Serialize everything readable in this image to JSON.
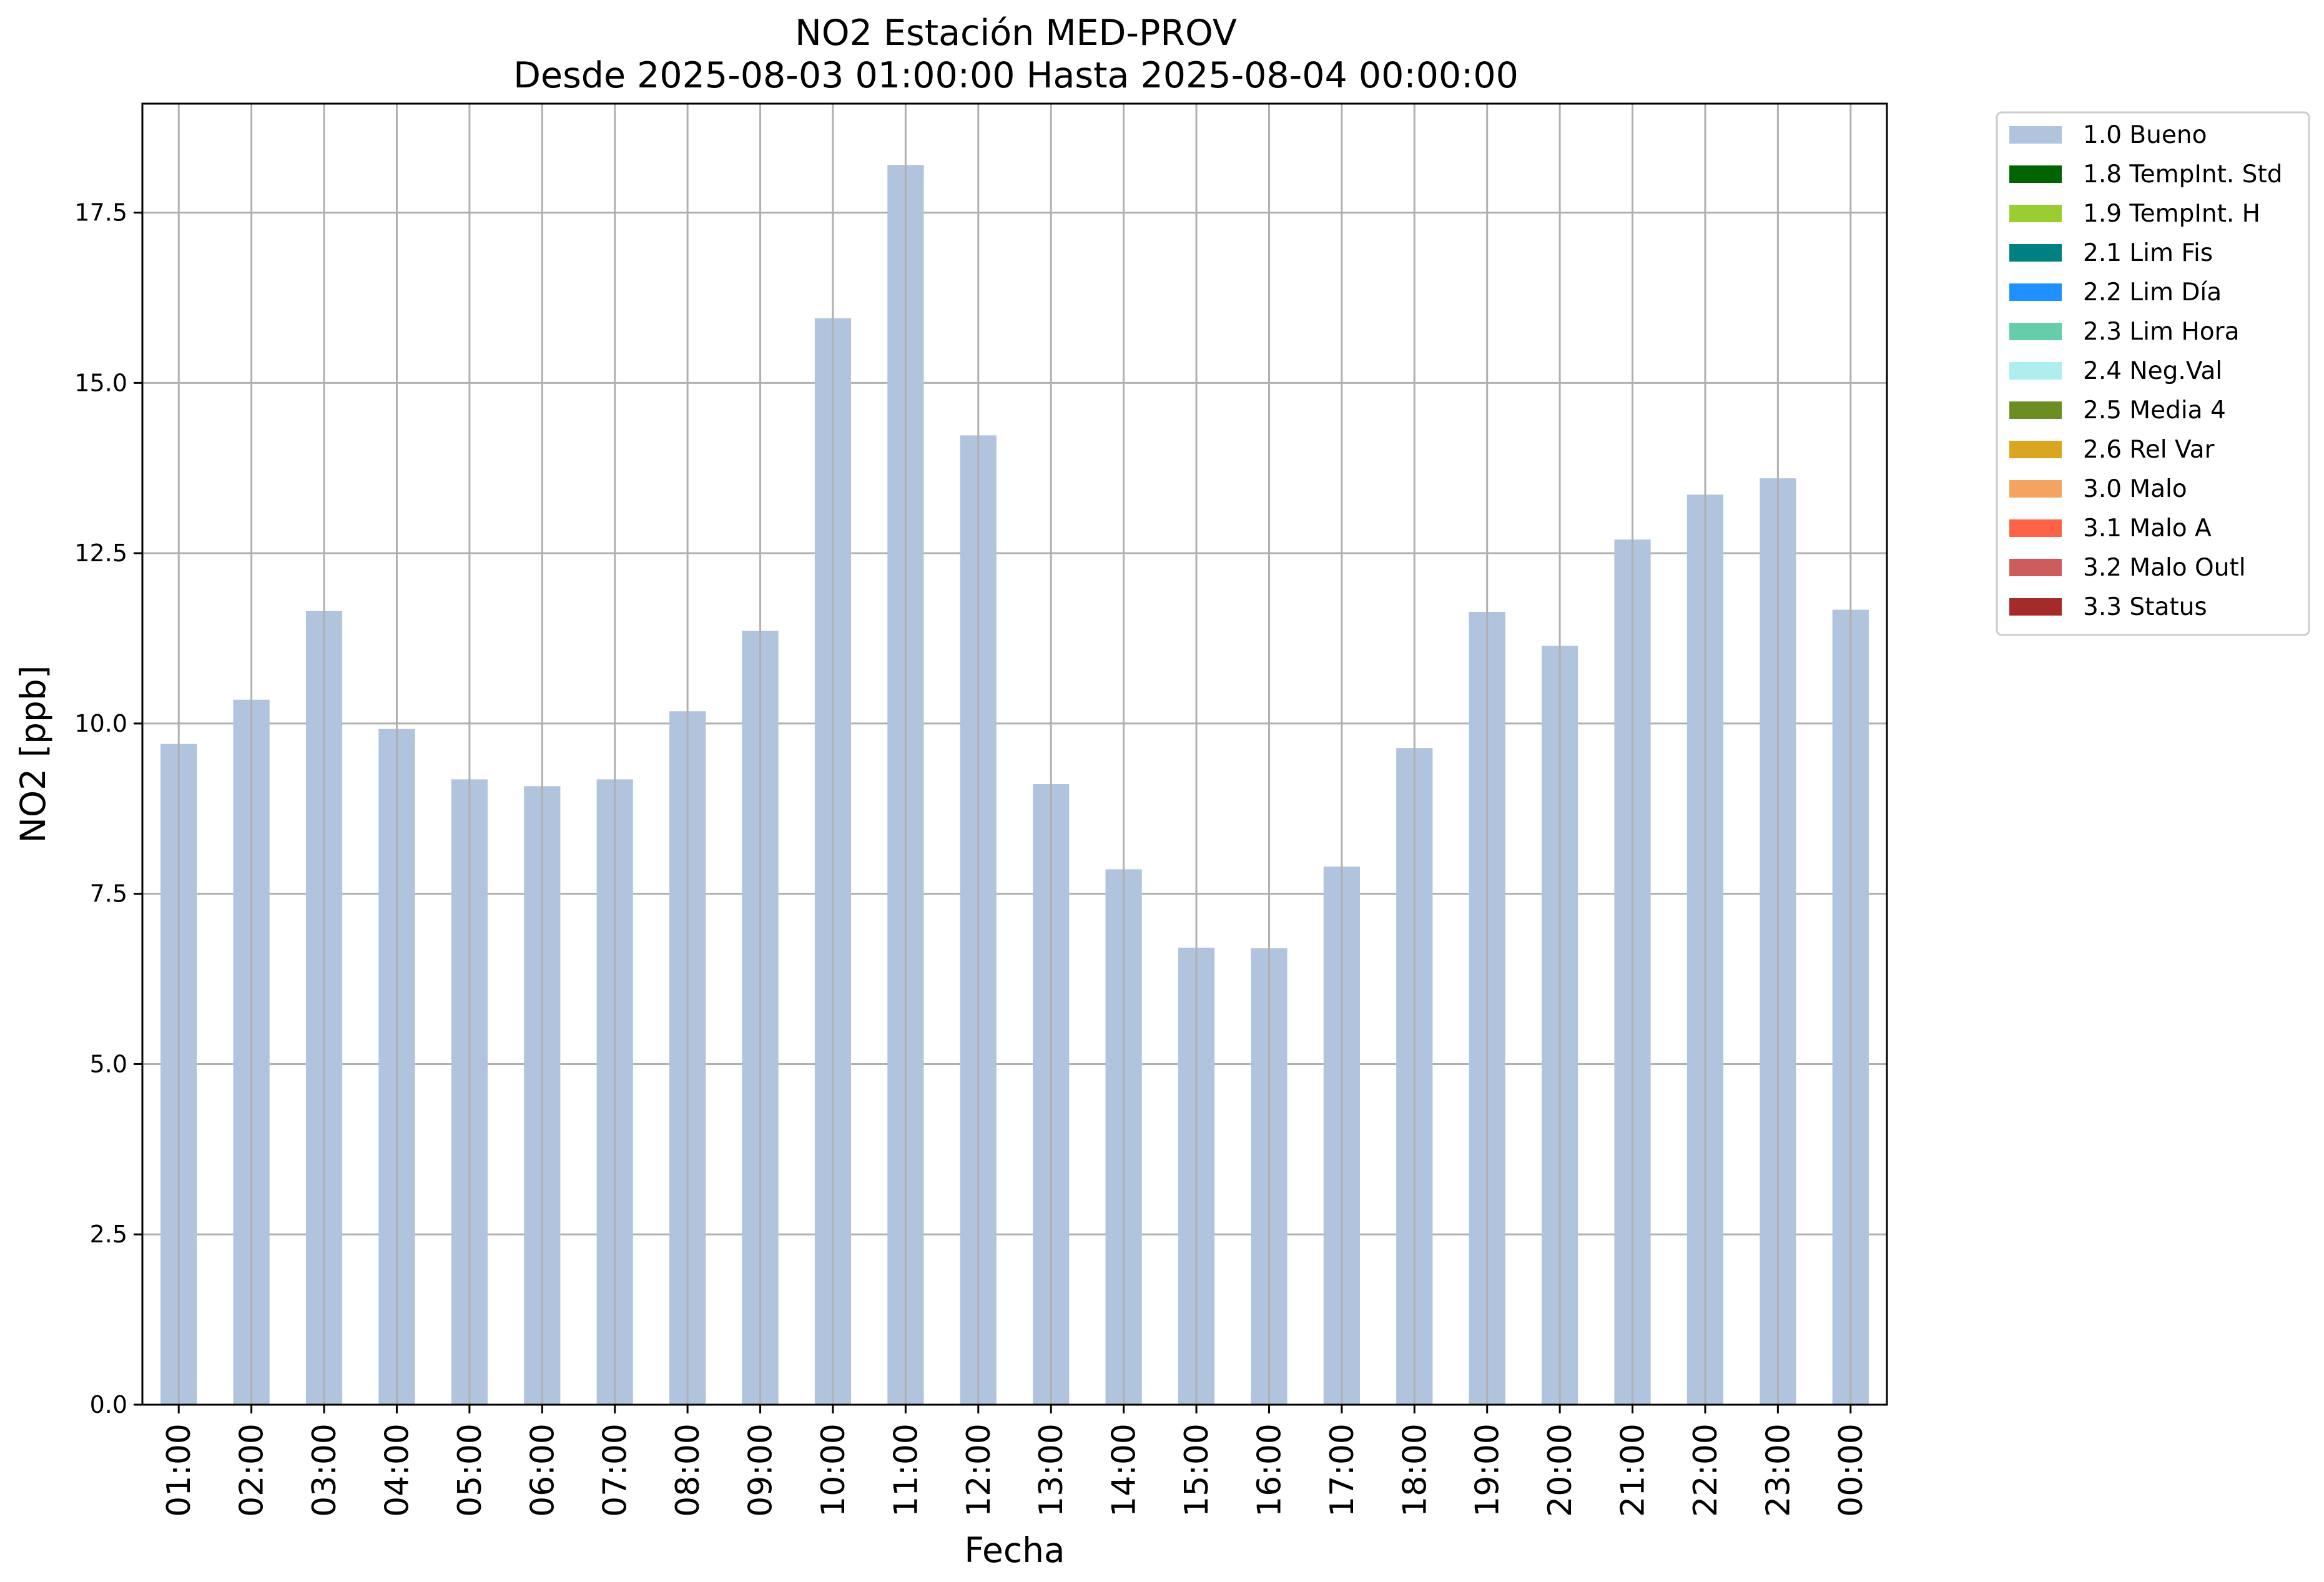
{
  "chart_data": {
    "type": "bar",
    "title": "NO2 Estación MED-PROV",
    "subtitle": "Desde 2025-08-03 01:00:00 Hasta 2025-08-04 00:00:00",
    "xlabel": "Fecha",
    "ylabel": "NO2 [ppb]",
    "ylim": [
      0,
      19.1
    ],
    "yticks": [
      "0.0",
      "2.5",
      "5.0",
      "7.5",
      "10.0",
      "12.5",
      "15.0",
      "17.5"
    ],
    "grid": true,
    "legend_position": "outside-top-right",
    "categories": [
      "01:00",
      "02:00",
      "03:00",
      "04:00",
      "05:00",
      "06:00",
      "07:00",
      "08:00",
      "09:00",
      "10:00",
      "11:00",
      "12:00",
      "13:00",
      "14:00",
      "15:00",
      "16:00",
      "17:00",
      "18:00",
      "19:00",
      "20:00",
      "21:00",
      "22:00",
      "23:00",
      "00:00"
    ],
    "series": [
      {
        "name": "1.0 Bueno",
        "color": "#b0c4de",
        "values": [
          9.7,
          10.35,
          11.65,
          9.92,
          9.18,
          9.08,
          9.18,
          10.18,
          11.36,
          15.95,
          18.2,
          14.23,
          9.11,
          7.86,
          6.71,
          6.7,
          7.9,
          9.64,
          11.64,
          11.14,
          12.7,
          13.36,
          13.6,
          11.67
        ]
      }
    ],
    "legend": [
      {
        "label": "1.0 Bueno",
        "color": "#b0c4de"
      },
      {
        "label": "1.8 TempInt. Std",
        "color": "#006400"
      },
      {
        "label": "1.9 TempInt. H",
        "color": "#9acd32"
      },
      {
        "label": "2.1 Lim Fis",
        "color": "#008080"
      },
      {
        "label": "2.2 Lim Día",
        "color": "#1e90ff"
      },
      {
        "label": "2.3 Lim Hora",
        "color": "#66cdaa"
      },
      {
        "label": "2.4 Neg.Val",
        "color": "#afeeee"
      },
      {
        "label": "2.5 Media 4",
        "color": "#6b8e23"
      },
      {
        "label": "2.6 Rel Var",
        "color": "#daa520"
      },
      {
        "label": "3.0 Malo",
        "color": "#f4a460"
      },
      {
        "label": "3.1 Malo A",
        "color": "#ff6347"
      },
      {
        "label": "3.2 Malo Outl",
        "color": "#cd5c5c"
      },
      {
        "label": "3.3 Status",
        "color": "#a52a2a"
      }
    ]
  }
}
